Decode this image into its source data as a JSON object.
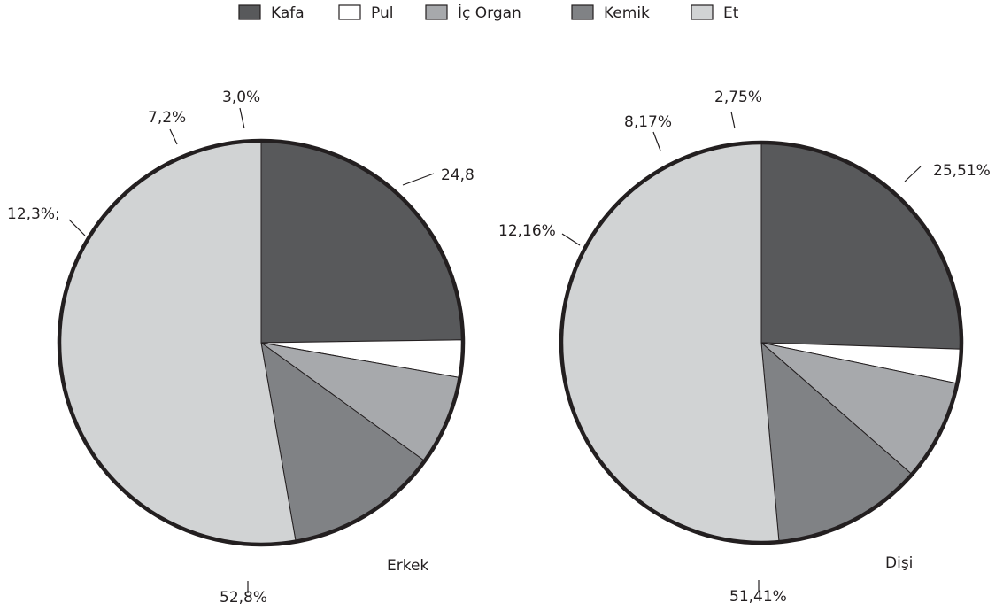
{
  "colors": {
    "kafa": "#58595b",
    "pul": "#ffffff",
    "ic_organ": "#a7a9ac",
    "kemik": "#808285",
    "et": "#d1d3d4"
  },
  "chart_data": [
    {
      "type": "pie",
      "label": "Erkek",
      "categories": [
        "Kafa",
        "Pul",
        "İç Organ",
        "Kemik",
        "Et"
      ],
      "values": [
        24.8,
        3.0,
        7.2,
        12.3,
        52.8
      ],
      "value_labels": [
        "24,8",
        "3,0%",
        "7,2%",
        "12,3%;",
        "52,8%"
      ]
    },
    {
      "type": "pie",
      "label": "Dişi",
      "categories": [
        "Kafa",
        "Pul",
        "İç Organ",
        "Kemik",
        "Et"
      ],
      "values": [
        25.51,
        2.75,
        8.17,
        12.16,
        51.41
      ],
      "value_labels": [
        "25,51%",
        "2,75%",
        "8,17%",
        "12,16%",
        "51,41%"
      ]
    }
  ],
  "legend": {
    "placement": "top-center",
    "items": [
      {
        "label": "Kafa",
        "color_key": "kafa"
      },
      {
        "label": "Pul",
        "color_key": "pul"
      },
      {
        "label": "İç Organ",
        "color_key": "ic_organ"
      },
      {
        "label": "Kemik",
        "color_key": "kemik"
      },
      {
        "label": "Et",
        "color_key": "et"
      }
    ]
  }
}
